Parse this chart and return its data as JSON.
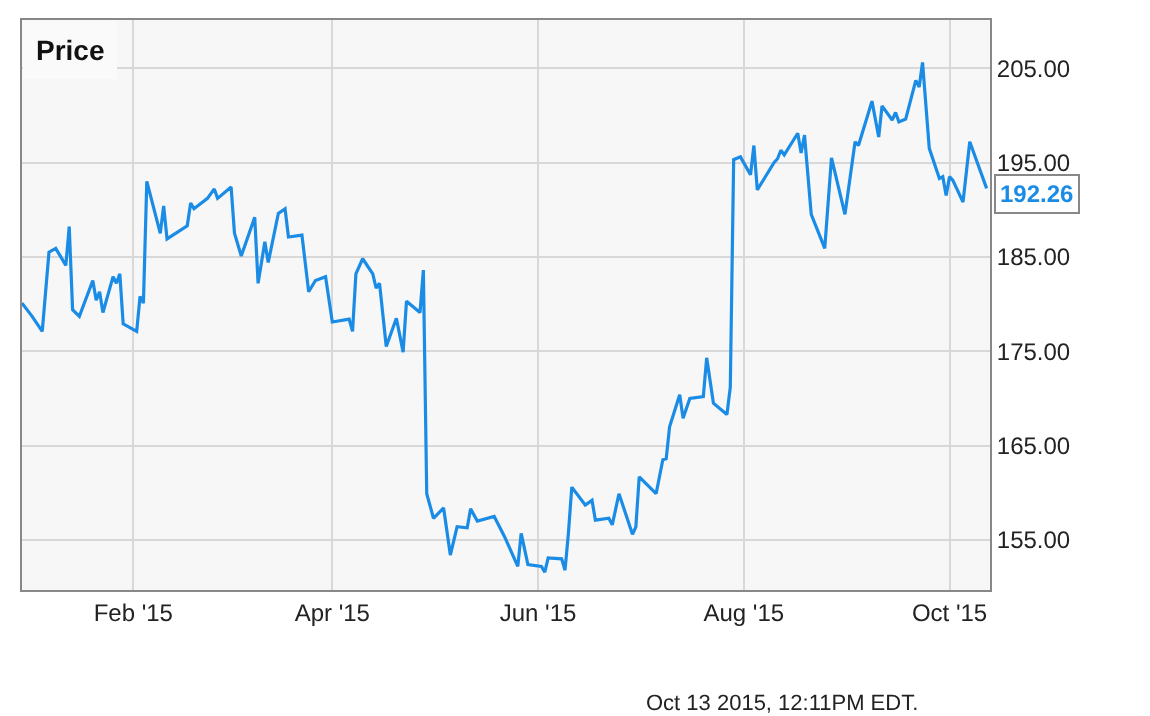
{
  "chart_data": {
    "type": "line",
    "title": "Price",
    "x": [
      "2014-12-30",
      "2015-01-02",
      "2015-01-05",
      "2015-01-07",
      "2015-01-09",
      "2015-01-12",
      "2015-01-13",
      "2015-01-14",
      "2015-01-16",
      "2015-01-20",
      "2015-01-21",
      "2015-01-22",
      "2015-01-23",
      "2015-01-26",
      "2015-01-27",
      "2015-01-28",
      "2015-01-29",
      "2015-02-02",
      "2015-02-03",
      "2015-02-04",
      "2015-02-05",
      "2015-02-09",
      "2015-02-10",
      "2015-02-11",
      "2015-02-17",
      "2015-02-18",
      "2015-02-19",
      "2015-02-23",
      "2015-02-25",
      "2015-02-26",
      "2015-03-02",
      "2015-03-03",
      "2015-03-05",
      "2015-03-09",
      "2015-03-10",
      "2015-03-12",
      "2015-03-13",
      "2015-03-16",
      "2015-03-18",
      "2015-03-19",
      "2015-03-23",
      "2015-03-25",
      "2015-03-27",
      "2015-03-30",
      "2015-04-01",
      "2015-04-06",
      "2015-04-07",
      "2015-04-08",
      "2015-04-10",
      "2015-04-13",
      "2015-04-14",
      "2015-04-15",
      "2015-04-17",
      "2015-04-20",
      "2015-04-22",
      "2015-04-23",
      "2015-04-27",
      "2015-04-28",
      "2015-04-29",
      "2015-05-01",
      "2015-05-04",
      "2015-05-06",
      "2015-05-08",
      "2015-05-11",
      "2015-05-12",
      "2015-05-14",
      "2015-05-19",
      "2015-05-22",
      "2015-05-26",
      "2015-05-27",
      "2015-05-29",
      "2015-06-02",
      "2015-06-03",
      "2015-06-04",
      "2015-06-08",
      "2015-06-09",
      "2015-06-10",
      "2015-06-11",
      "2015-06-15",
      "2015-06-17",
      "2015-06-18",
      "2015-06-22",
      "2015-06-23",
      "2015-06-25",
      "2015-06-29",
      "2015-06-30",
      "2015-07-01",
      "2015-07-06",
      "2015-07-08",
      "2015-07-09",
      "2015-07-10",
      "2015-07-13",
      "2015-07-14",
      "2015-07-16",
      "2015-07-20",
      "2015-07-21",
      "2015-07-23",
      "2015-07-27",
      "2015-07-28",
      "2015-07-29",
      "2015-07-31",
      "2015-08-03",
      "2015-08-04",
      "2015-08-05",
      "2015-08-10",
      "2015-08-11",
      "2015-08-12",
      "2015-08-13",
      "2015-08-17",
      "2015-08-18",
      "2015-08-19",
      "2015-08-21",
      "2015-08-25",
      "2015-08-27",
      "2015-08-31",
      "2015-09-03",
      "2015-09-04",
      "2015-09-08",
      "2015-09-10",
      "2015-09-11",
      "2015-09-14",
      "2015-09-15",
      "2015-09-16",
      "2015-09-18",
      "2015-09-21",
      "2015-09-22",
      "2015-09-23",
      "2015-09-25",
      "2015-09-28",
      "2015-09-29",
      "2015-09-30",
      "2015-10-01",
      "2015-10-02",
      "2015-10-05",
      "2015-10-07",
      "2015-10-12"
    ],
    "series": [
      {
        "color": "#1a8ce6",
        "values": [
          180.1,
          178.7,
          177.1,
          185.5,
          185.9,
          184.1,
          188.2,
          179.4,
          178.7,
          182.5,
          180.4,
          181.3,
          179.1,
          182.9,
          182.2,
          183.2,
          177.9,
          177.1,
          180.8,
          180.1,
          193.0,
          187.5,
          190.4,
          186.9,
          188.3,
          190.7,
          190.1,
          191.2,
          192.2,
          191.2,
          192.4,
          187.5,
          185.1,
          189.2,
          182.2,
          186.6,
          184.4,
          189.6,
          190.1,
          187.1,
          187.3,
          181.3,
          182.5,
          182.9,
          178.1,
          178.4,
          177.1,
          183.2,
          184.8,
          183.2,
          181.7,
          182.2,
          175.5,
          178.5,
          174.9,
          180.3,
          179.1,
          183.6,
          159.9,
          157.3,
          158.4,
          153.4,
          156.4,
          156.3,
          158.3,
          157.0,
          157.5,
          155.4,
          152.2,
          155.7,
          152.4,
          152.2,
          151.6,
          153.1,
          153.0,
          151.8,
          155.7,
          160.6,
          158.7,
          159.2,
          157.1,
          157.3,
          156.6,
          159.9,
          155.6,
          156.4,
          161.7,
          159.9,
          163.5,
          163.6,
          167.0,
          170.4,
          167.9,
          170.0,
          170.2,
          174.3,
          169.5,
          168.3,
          171.2,
          195.3,
          195.6,
          193.7,
          196.8,
          192.1,
          195.0,
          195.4,
          196.3,
          195.8,
          198.1,
          196.0,
          197.9,
          189.5,
          185.9,
          195.5,
          189.5,
          197.2,
          196.8,
          201.5,
          197.7,
          201.0,
          199.5,
          200.3,
          199.3,
          199.6,
          203.7,
          203.0,
          205.6,
          196.5,
          193.3,
          193.5,
          191.5,
          193.5,
          193.1,
          190.8,
          197.2,
          192.26
        ]
      }
    ],
    "xlim": [
      "2014-12-30",
      "2015-10-13"
    ],
    "xticks": [
      {
        "value": "2015-02-01",
        "label": "Feb '15"
      },
      {
        "value": "2015-04-01",
        "label": "Apr '15"
      },
      {
        "value": "2015-06-01",
        "label": "Jun '15"
      },
      {
        "value": "2015-08-01",
        "label": "Aug '15"
      },
      {
        "value": "2015-10-01",
        "label": "Oct '15"
      }
    ],
    "ylim": [
      149.7,
      210.1
    ],
    "yticks": [
      {
        "value": 155,
        "label": "155.00"
      },
      {
        "value": 165,
        "label": "165.00"
      },
      {
        "value": 175,
        "label": "175.00"
      },
      {
        "value": 185,
        "label": "185.00"
      },
      {
        "value": 195,
        "label": "195.00"
      },
      {
        "value": 205,
        "label": "205.00"
      }
    ],
    "annotations": [
      {
        "text": "192.26",
        "x": "2015-10-12",
        "y": 192.26
      },
      "Oct 13 2015, 12:11PM EDT."
    ],
    "grid": true,
    "marker": "none",
    "line_style": "solid"
  }
}
